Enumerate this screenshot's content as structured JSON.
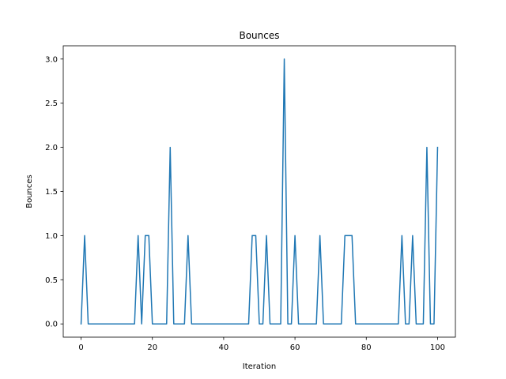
{
  "chart_data": {
    "type": "line",
    "title": "Bounces",
    "xlabel": "Iteration",
    "ylabel": "Bounces",
    "xlim": [
      -5,
      105
    ],
    "ylim": [
      -0.15,
      3.15
    ],
    "xticks": [
      0,
      20,
      40,
      60,
      80,
      100
    ],
    "yticks": [
      0.0,
      0.5,
      1.0,
      1.5,
      2.0,
      2.5,
      3.0
    ],
    "xtick_labels": [
      "0",
      "20",
      "40",
      "60",
      "80",
      "100"
    ],
    "ytick_labels": [
      "0.0",
      "0.5",
      "1.0",
      "1.5",
      "2.0",
      "2.5",
      "3.0"
    ],
    "grid": false,
    "color": "#1f77b4",
    "series": [
      {
        "x": [
          0,
          1,
          2,
          3,
          4,
          5,
          6,
          7,
          8,
          9,
          10,
          11,
          12,
          13,
          14,
          15,
          16,
          17,
          18,
          19,
          20,
          21,
          22,
          23,
          24,
          25,
          26,
          27,
          28,
          29,
          30,
          31,
          32,
          33,
          34,
          35,
          36,
          37,
          38,
          39,
          40,
          41,
          42,
          43,
          44,
          45,
          46,
          47,
          48,
          49,
          50,
          51,
          52,
          53,
          54,
          55,
          56,
          57,
          58,
          59,
          60,
          61,
          62,
          63,
          64,
          65,
          66,
          67,
          68,
          69,
          70,
          71,
          72,
          73,
          74,
          75,
          76,
          77,
          78,
          79,
          80,
          81,
          82,
          83,
          84,
          85,
          86,
          87,
          88,
          89,
          90,
          91,
          92,
          93,
          94,
          95,
          96,
          97,
          98,
          99,
          100
        ],
        "values": [
          0,
          1,
          0,
          0,
          0,
          0,
          0,
          0,
          0,
          0,
          0,
          0,
          0,
          0,
          0,
          0,
          1,
          0,
          1,
          1,
          0,
          0,
          0,
          0,
          0,
          2,
          0,
          0,
          0,
          0,
          1,
          0,
          0,
          0,
          0,
          0,
          0,
          0,
          0,
          0,
          0,
          0,
          0,
          0,
          0,
          0,
          0,
          0,
          1,
          1,
          0,
          0,
          1,
          0,
          0,
          0,
          0,
          3,
          0,
          0,
          1,
          0,
          0,
          0,
          0,
          0,
          0,
          1,
          0,
          0,
          0,
          0,
          0,
          0,
          1,
          1,
          1,
          0,
          0,
          0,
          0,
          0,
          0,
          0,
          0,
          0,
          0,
          0,
          0,
          0,
          1,
          0,
          0,
          1,
          0,
          0,
          0,
          2,
          0,
          0,
          2
        ]
      }
    ]
  }
}
